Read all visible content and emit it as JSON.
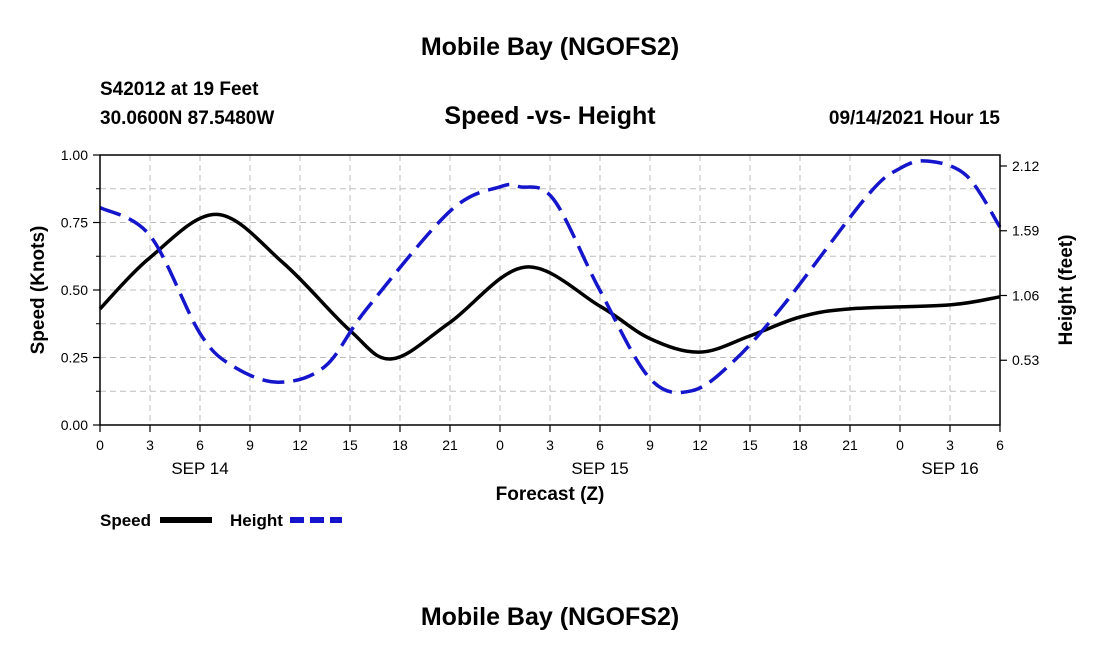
{
  "header": {
    "title_top": "Mobile Bay (NGOFS2)",
    "station": "S42012 at 19 Feet",
    "coords": "30.0600N  87.5480W",
    "subtitle": "Speed -vs- Height",
    "datetime": "09/14/2021 Hour 15",
    "title_bottom": "Mobile Bay (NGOFS2)"
  },
  "chart_data": {
    "type": "line",
    "title": "Speed -vs- Height",
    "xlabel": "Forecast (Z)",
    "ylabel": "Speed (Knots)",
    "y2label": "Height (feet)",
    "x_tick_labels": [
      "0",
      "3",
      "6",
      "9",
      "12",
      "15",
      "18",
      "21",
      "0",
      "3",
      "6",
      "9",
      "12",
      "15",
      "18",
      "21",
      "0",
      "3",
      "6"
    ],
    "day_labels": [
      "SEP 14",
      "SEP 15",
      "SEP 16"
    ],
    "xlim": [
      0,
      54
    ],
    "ylim": [
      0,
      1.0
    ],
    "y_ticks": [
      "0.00",
      "0.25",
      "0.50",
      "0.75",
      "1.00"
    ],
    "y2lim": [
      0.0,
      2.21
    ],
    "y2_ticks": [
      "0.53",
      "1.06",
      "1.59",
      "2.12"
    ],
    "grid": true,
    "legend": "bottom-left",
    "series": [
      {
        "name": "Speed",
        "axis": "left",
        "color": "#000000",
        "style": "solid",
        "x": [
          0,
          3,
          7,
          11,
          15,
          17.5,
          21,
          25.5,
          30,
          33,
          36,
          39,
          42,
          45,
          51,
          54
        ],
        "y": [
          0.43,
          0.62,
          0.78,
          0.6,
          0.35,
          0.245,
          0.38,
          0.585,
          0.44,
          0.32,
          0.27,
          0.33,
          0.4,
          0.43,
          0.445,
          0.475
        ]
      },
      {
        "name": "Height",
        "axis": "right",
        "color": "#1515cc",
        "style": "dashed",
        "x": [
          0,
          3,
          6,
          8,
          10.7,
          13.5,
          16,
          21,
          24,
          25.2,
          27.2,
          30,
          33,
          35.5,
          38,
          41,
          46,
          48,
          49.7,
          52,
          54
        ],
        "y": [
          1.78,
          1.55,
          0.75,
          0.48,
          0.35,
          0.48,
          0.95,
          1.75,
          1.95,
          1.95,
          1.85,
          1.1,
          0.38,
          0.28,
          0.52,
          0.98,
          1.87,
          2.1,
          2.16,
          2.04,
          1.62
        ]
      }
    ]
  }
}
